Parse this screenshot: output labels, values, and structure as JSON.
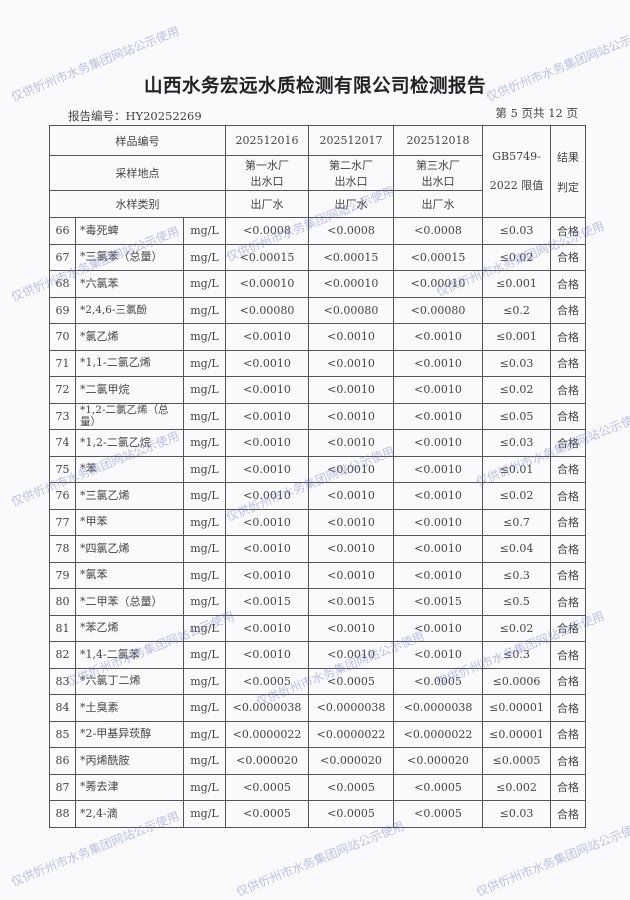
{
  "title": "山西水务宏远水质检测有限公司检测报告",
  "report_no": "报告编号：HY20252269",
  "page_no": "第 5 页共 12 页",
  "watermark": "仅供忻州市水务集团网站公示使用",
  "header": {
    "sample_no_label": "样品编号",
    "location_label": "采样地点",
    "type_label": "水样类别",
    "samples": [
      {
        "no": "202512016",
        "location_1": "第一水厂",
        "location_2": "出水口",
        "type": "出厂水"
      },
      {
        "no": "202512017",
        "location_1": "第二水厂",
        "location_2": "出水口",
        "type": "出厂水"
      },
      {
        "no": "202512018",
        "location_1": "第三水厂",
        "location_2": "出水口",
        "type": "出厂水"
      }
    ],
    "limit_1": "GB5749-",
    "limit_2": "2022 限值",
    "result_1": "结果",
    "result_2": "判定"
  },
  "rows": [
    {
      "n": "66",
      "name": "*毒死蜱",
      "unit": "mg/L",
      "v1": "<0.0008",
      "v2": "<0.0008",
      "v3": "<0.0008",
      "limit": "≤0.03",
      "result": "合格"
    },
    {
      "n": "67",
      "name": "*三氯苯（总量）",
      "unit": "mg/L",
      "v1": "<0.00015",
      "v2": "<0.00015",
      "v3": "<0.00015",
      "limit": "≤0.02",
      "result": "合格"
    },
    {
      "n": "68",
      "name": "*六氯苯",
      "unit": "mg/L",
      "v1": "<0.00010",
      "v2": "<0.00010",
      "v3": "<0.00010",
      "limit": "≤0.001",
      "result": "合格"
    },
    {
      "n": "69",
      "name": "*2,4,6-三氯酚",
      "unit": "mg/L",
      "v1": "<0.00080",
      "v2": "<0.00080",
      "v3": "<0.00080",
      "limit": "≤0.2",
      "result": "合格"
    },
    {
      "n": "70",
      "name": "*氯乙烯",
      "unit": "mg/L",
      "v1": "<0.0010",
      "v2": "<0.0010",
      "v3": "<0.0010",
      "limit": "≤0.001",
      "result": "合格"
    },
    {
      "n": "71",
      "name": "*1,1-二氯乙烯",
      "unit": "mg/L",
      "v1": "<0.0010",
      "v2": "<0.0010",
      "v3": "<0.0010",
      "limit": "≤0.03",
      "result": "合格"
    },
    {
      "n": "72",
      "name": "*二氯甲烷",
      "unit": "mg/L",
      "v1": "<0.0010",
      "v2": "<0.0010",
      "v3": "<0.0010",
      "limit": "≤0.02",
      "result": "合格"
    },
    {
      "n": "73",
      "name": "*1,2-二氯乙烯（总量）",
      "unit": "mg/L",
      "v1": "<0.0010",
      "v2": "<0.0010",
      "v3": "<0.0010",
      "limit": "≤0.05",
      "result": "合格"
    },
    {
      "n": "74",
      "name": "*1,2-二氯乙烷",
      "unit": "mg/L",
      "v1": "<0.0010",
      "v2": "<0.0010",
      "v3": "<0.0010",
      "limit": "≤0.03",
      "result": "合格"
    },
    {
      "n": "75",
      "name": "*苯",
      "unit": "mg/L",
      "v1": "<0.0010",
      "v2": "<0.0010",
      "v3": "<0.0010",
      "limit": "≤0.01",
      "result": "合格"
    },
    {
      "n": "76",
      "name": "*三氯乙烯",
      "unit": "mg/L",
      "v1": "<0.0010",
      "v2": "<0.0010",
      "v3": "<0.0010",
      "limit": "≤0.02",
      "result": "合格"
    },
    {
      "n": "77",
      "name": "*甲苯",
      "unit": "mg/L",
      "v1": "<0.0010",
      "v2": "<0.0010",
      "v3": "<0.0010",
      "limit": "≤0.7",
      "result": "合格"
    },
    {
      "n": "78",
      "name": "*四氯乙烯",
      "unit": "mg/L",
      "v1": "<0.0010",
      "v2": "<0.0010",
      "v3": "<0.0010",
      "limit": "≤0.04",
      "result": "合格"
    },
    {
      "n": "79",
      "name": "*氯苯",
      "unit": "mg/L",
      "v1": "<0.0010",
      "v2": "<0.0010",
      "v3": "<0.0010",
      "limit": "≤0.3",
      "result": "合格"
    },
    {
      "n": "80",
      "name": "*二甲苯（总量）",
      "unit": "mg/L",
      "v1": "<0.0015",
      "v2": "<0.0015",
      "v3": "<0.0015",
      "limit": "≤0.5",
      "result": "合格"
    },
    {
      "n": "81",
      "name": "*苯乙烯",
      "unit": "mg/L",
      "v1": "<0.0010",
      "v2": "<0.0010",
      "v3": "<0.0010",
      "limit": "≤0.02",
      "result": "合格"
    },
    {
      "n": "82",
      "name": "*1,4-二氯苯",
      "unit": "mg/L",
      "v1": "<0.0010",
      "v2": "<0.0010",
      "v3": "<0.0010",
      "limit": "≤0.3",
      "result": "合格"
    },
    {
      "n": "83",
      "name": "*六氯丁二烯",
      "unit": "mg/L",
      "v1": "<0.0005",
      "v2": "<0.0005",
      "v3": "<0.0005",
      "limit": "≤0.0006",
      "result": "合格"
    },
    {
      "n": "84",
      "name": "*土臭素",
      "unit": "mg/L",
      "v1": "<0.0000038",
      "v2": "<0.0000038",
      "v3": "<0.0000038",
      "limit": "≤0.00001",
      "result": "合格"
    },
    {
      "n": "85",
      "name": "*2-甲基异莰醇",
      "unit": "mg/L",
      "v1": "<0.0000022",
      "v2": "<0.0000022",
      "v3": "<0.0000022",
      "limit": "≤0.00001",
      "result": "合格"
    },
    {
      "n": "86",
      "name": "*丙烯酰胺",
      "unit": "mg/L",
      "v1": "<0.000020",
      "v2": "<0.000020",
      "v3": "<0.000020",
      "limit": "≤0.0005",
      "result": "合格"
    },
    {
      "n": "87",
      "name": "*莠去津",
      "unit": "mg/L",
      "v1": "<0.0005",
      "v2": "<0.0005",
      "v3": "<0.0005",
      "limit": "≤0.002",
      "result": "合格"
    },
    {
      "n": "88",
      "name": "*2,4-滴",
      "unit": "mg/L",
      "v1": "<0.0005",
      "v2": "<0.0005",
      "v3": "<0.0005",
      "limit": "≤0.03",
      "result": "合格"
    }
  ]
}
